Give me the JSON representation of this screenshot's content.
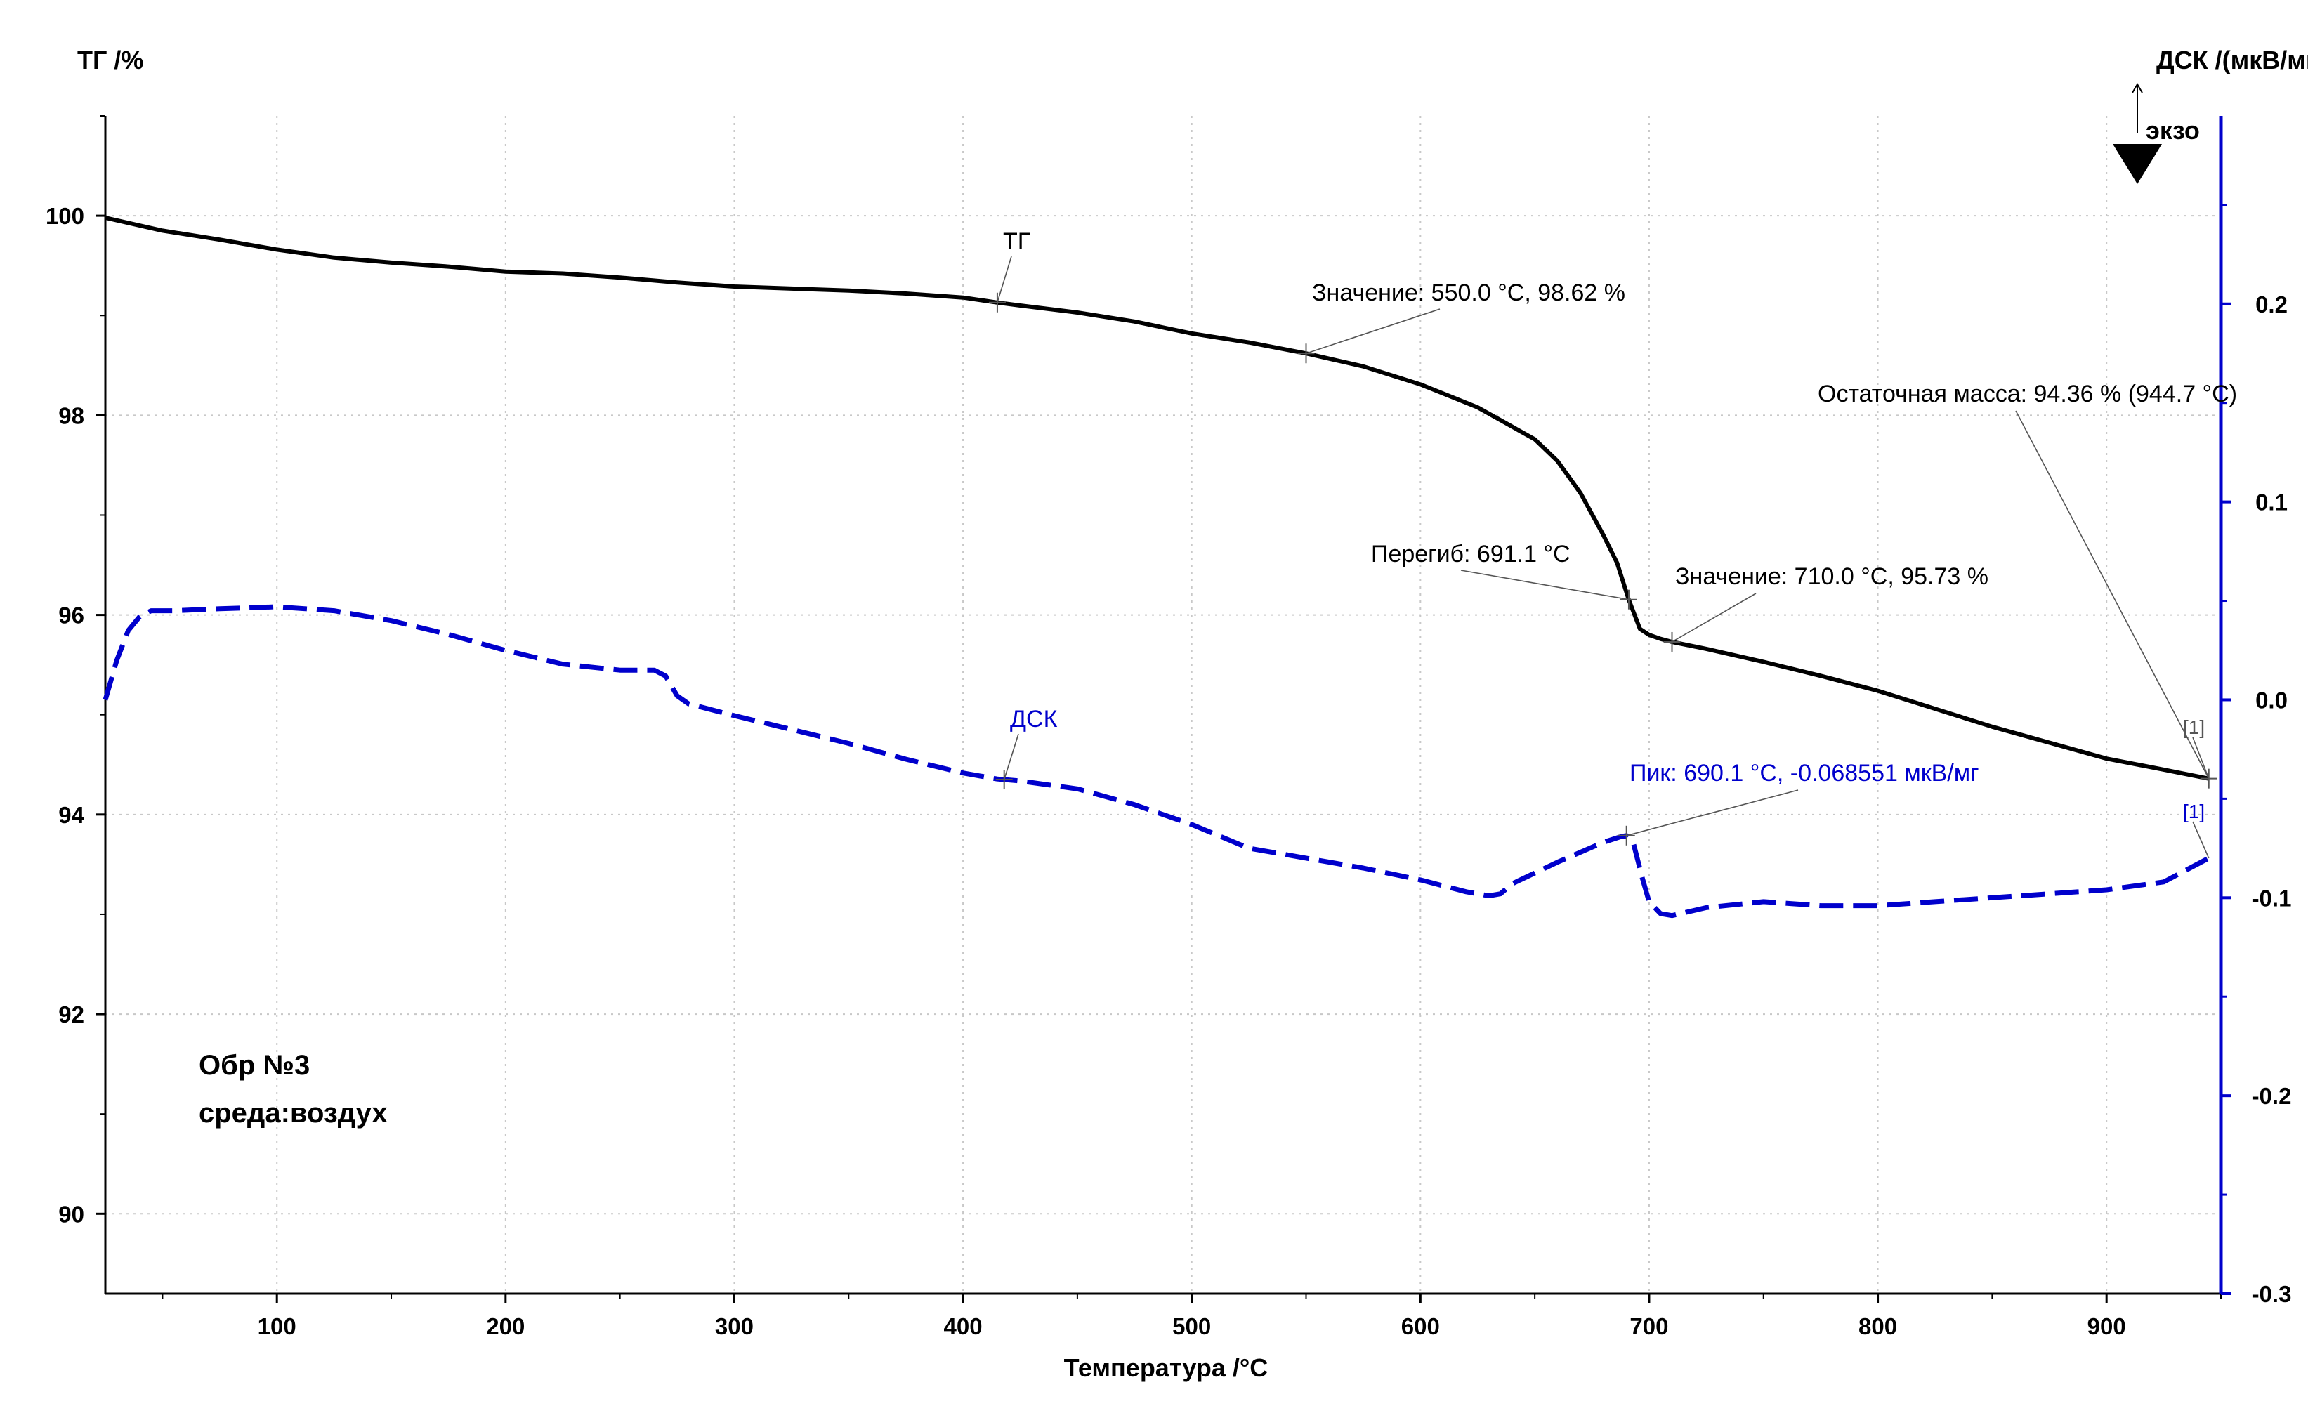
{
  "chart_data": {
    "type": "line",
    "xlabel": "Температура /°C",
    "ylabel_left": "ТГ /%",
    "ylabel_right": "ДСК /(мкВ/мг)",
    "exo_label": "экзо",
    "xlim": [
      25,
      950
    ],
    "ylim_left": [
      89.2,
      101.0
    ],
    "ylim_right": [
      -0.3,
      0.295
    ],
    "x_ticks": [
      100,
      200,
      300,
      400,
      500,
      600,
      700,
      800,
      900
    ],
    "y_ticks_left": [
      90,
      92,
      94,
      96,
      98,
      100
    ],
    "y_ticks_right": [
      -0.3,
      -0.2,
      -0.1,
      0.0,
      0.1,
      0.2
    ],
    "y_tick_labels_right": [
      "-0.3",
      "-0.2",
      "-0.1",
      "0.0",
      "0.1",
      "0.2"
    ],
    "grid": true,
    "series": [
      {
        "name": "ТГ",
        "axis": "left",
        "color": "#000000",
        "style": "solid",
        "x": [
          25,
          50,
          75,
          100,
          125,
          150,
          175,
          200,
          225,
          250,
          275,
          300,
          325,
          350,
          375,
          400,
          415,
          425,
          450,
          475,
          500,
          525,
          550,
          575,
          600,
          625,
          650,
          660,
          670,
          680,
          686,
          691,
          696,
          700,
          705,
          710,
          725,
          750,
          775,
          800,
          825,
          850,
          875,
          900,
          925,
          944.7
        ],
        "values": [
          99.98,
          99.85,
          99.76,
          99.66,
          99.58,
          99.53,
          99.49,
          99.44,
          99.42,
          99.38,
          99.33,
          99.29,
          99.27,
          99.25,
          99.22,
          99.18,
          99.13,
          99.1,
          99.03,
          98.94,
          98.82,
          98.73,
          98.62,
          98.49,
          98.31,
          98.08,
          97.76,
          97.54,
          97.22,
          96.8,
          96.52,
          96.16,
          95.86,
          95.8,
          95.76,
          95.73,
          95.66,
          95.53,
          95.39,
          95.24,
          95.06,
          94.88,
          94.72,
          94.56,
          94.45,
          94.36
        ]
      },
      {
        "name": "ДСК",
        "axis": "right",
        "color": "#0000cc",
        "style": "dashed",
        "x": [
          25,
          30,
          35,
          40,
          45,
          50,
          55,
          75,
          100,
          125,
          150,
          175,
          200,
          225,
          250,
          265,
          270,
          275,
          280,
          300,
          325,
          350,
          375,
          400,
          415,
          425,
          450,
          475,
          500,
          525,
          550,
          575,
          600,
          620,
          630,
          635,
          640,
          660,
          680,
          688,
          690.1,
          693,
          697,
          700,
          705,
          710,
          725,
          750,
          775,
          800,
          825,
          850,
          875,
          900,
          925,
          944.7
        ],
        "values": [
          0.0,
          0.02,
          0.035,
          0.042,
          0.045,
          0.045,
          0.045,
          0.046,
          0.047,
          0.045,
          0.04,
          0.033,
          0.025,
          0.018,
          0.015,
          0.015,
          0.012,
          0.002,
          -0.002,
          -0.008,
          -0.015,
          -0.022,
          -0.03,
          -0.037,
          -0.04,
          -0.041,
          -0.045,
          -0.053,
          -0.063,
          -0.075,
          -0.08,
          -0.085,
          -0.091,
          -0.097,
          -0.099,
          -0.098,
          -0.093,
          -0.082,
          -0.072,
          -0.069,
          -0.0686,
          -0.072,
          -0.09,
          -0.102,
          -0.108,
          -0.109,
          -0.105,
          -0.102,
          -0.104,
          -0.104,
          -0.102,
          -0.1,
          -0.098,
          -0.096,
          -0.092,
          -0.08
        ]
      }
    ],
    "annotations": {
      "tg_label": "ТГ",
      "dsc_label": "ДСК",
      "value_550": "Значение: 550.0 °C, 98.62 %",
      "inflection": "Перегиб: 691.1 °C",
      "value_710": "Значение: 710.0 °C, 95.73 %",
      "residual_mass": "Остаточная масса: 94.36 % (944.7 °C)",
      "peak": "Пик: 690.1 °C, -0.068551 мкВ/мг",
      "marker_tg": "[1]",
      "marker_dsc": "[1]"
    },
    "sample_text": {
      "line1": "Обр №3",
      "line2": "среда:воздух"
    }
  }
}
